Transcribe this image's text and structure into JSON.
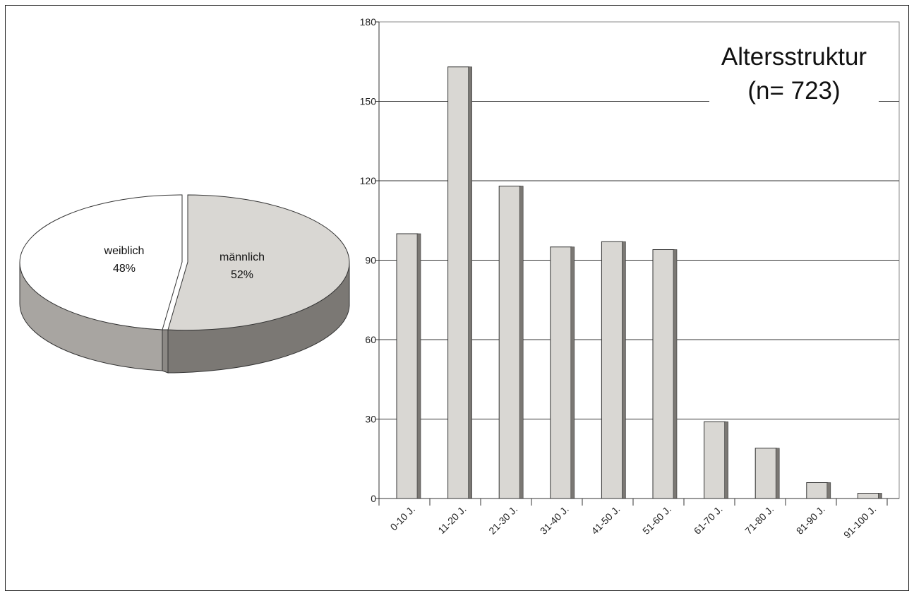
{
  "chart_data": [
    {
      "type": "pie",
      "style": "3d",
      "slices": [
        {
          "name": "weiblich",
          "value": 48,
          "label": "48%",
          "color": "#ffffff",
          "side_color": "#a8a5a1"
        },
        {
          "name": "männlich",
          "value": 52,
          "label": "52%",
          "color": "#d9d7d3",
          "side_color": "#7b7874"
        }
      ]
    },
    {
      "type": "bar",
      "title": "Altersstruktur",
      "subtitle": "(n= 723)",
      "categories": [
        "0-10 J.",
        "11-20 J.",
        "21-30 J.",
        "31-40 J.",
        "41-50 J.",
        "51-60 J.",
        "61-70 J.",
        "71-80 J.",
        "81-90 J.",
        "91-100 J."
      ],
      "values": [
        100,
        163,
        118,
        95,
        97,
        94,
        29,
        19,
        6,
        2
      ],
      "ylim": [
        0,
        180
      ],
      "yticks": [
        "0",
        "30",
        "60",
        "90",
        "120",
        "150",
        "180"
      ],
      "grid": true,
      "bar_color": "#d9d7d3",
      "bar_shadow_color": "#7b7874"
    }
  ]
}
